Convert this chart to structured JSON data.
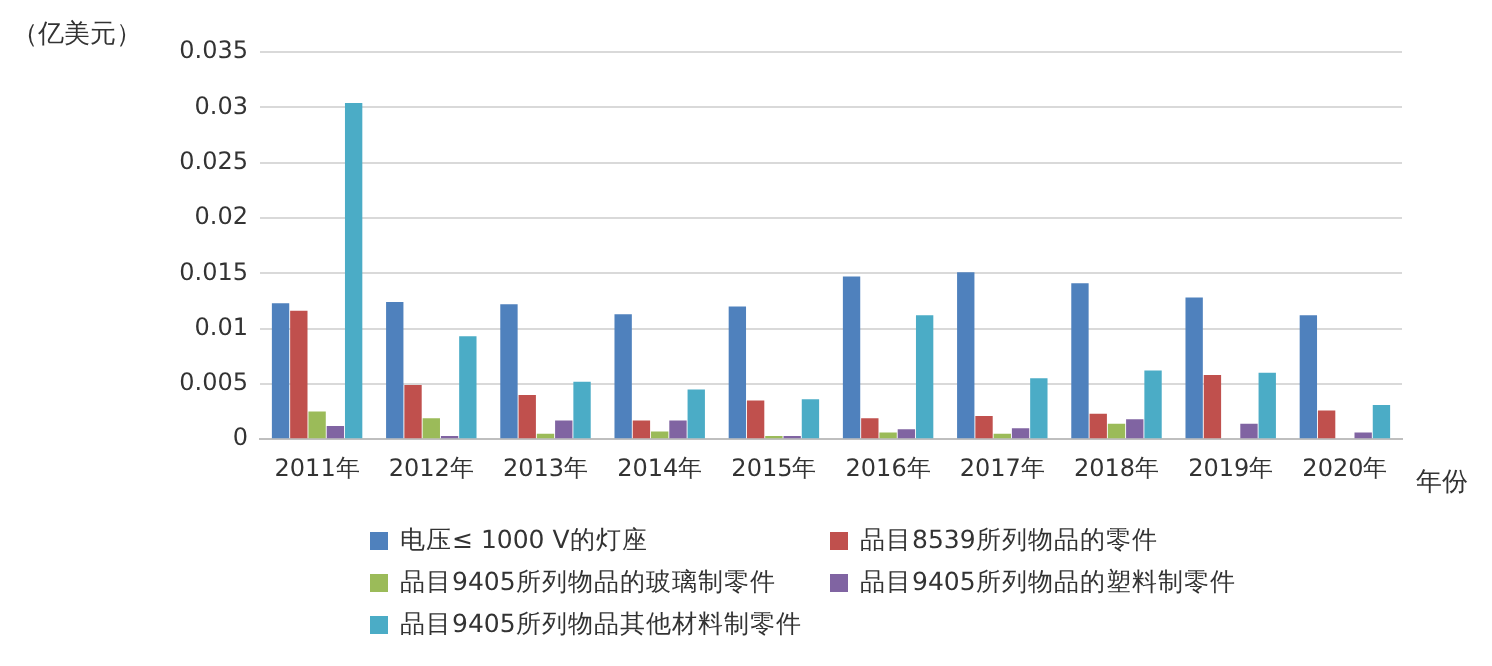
{
  "chart_data": {
    "type": "bar",
    "ylabel": "（亿美元）",
    "xlabel": "年份",
    "categories": [
      "2011年",
      "2012年",
      "2013年",
      "2014年",
      "2015年",
      "2016年",
      "2017年",
      "2018年",
      "2019年",
      "2020年"
    ],
    "series": [
      {
        "name": "电压≤ 1000 V的灯座",
        "color": "#4f81bd",
        "values": [
          0.0123,
          0.0124,
          0.0122,
          0.0113,
          0.012,
          0.0147,
          0.0151,
          0.0141,
          0.0128,
          0.0112
        ]
      },
      {
        "name": "品目8539所列物品的零件",
        "color": "#c0504d",
        "values": [
          0.0116,
          0.0049,
          0.004,
          0.0017,
          0.0035,
          0.0019,
          0.0021,
          0.0023,
          0.0058,
          0.0026
        ]
      },
      {
        "name": "品目9405所列物品的玻璃制零件",
        "color": "#9bbb59",
        "values": [
          0.0025,
          0.0019,
          0.0005,
          0.0007,
          0.0003,
          0.0006,
          0.0005,
          0.0014,
          null,
          null
        ]
      },
      {
        "name": "品目9405所列物品的塑料制零件",
        "color": "#8064a2",
        "values": [
          0.0012,
          0.0003,
          0.0017,
          0.0017,
          0.0003,
          0.0009,
          0.001,
          0.0018,
          0.0014,
          0.0006
        ]
      },
      {
        "name": "品目9405所列物品其他材料制零件",
        "color": "#4bacc6",
        "values": [
          0.0304,
          0.0093,
          0.0052,
          0.0045,
          0.0036,
          0.0112,
          0.0055,
          0.0062,
          0.006,
          0.0031
        ]
      }
    ],
    "ylim": [
      0,
      0.035
    ],
    "yticks": [
      0,
      0.005,
      0.01,
      0.015,
      0.02,
      0.025,
      0.03,
      0.035
    ],
    "grid": "y",
    "legend": "bottom"
  }
}
